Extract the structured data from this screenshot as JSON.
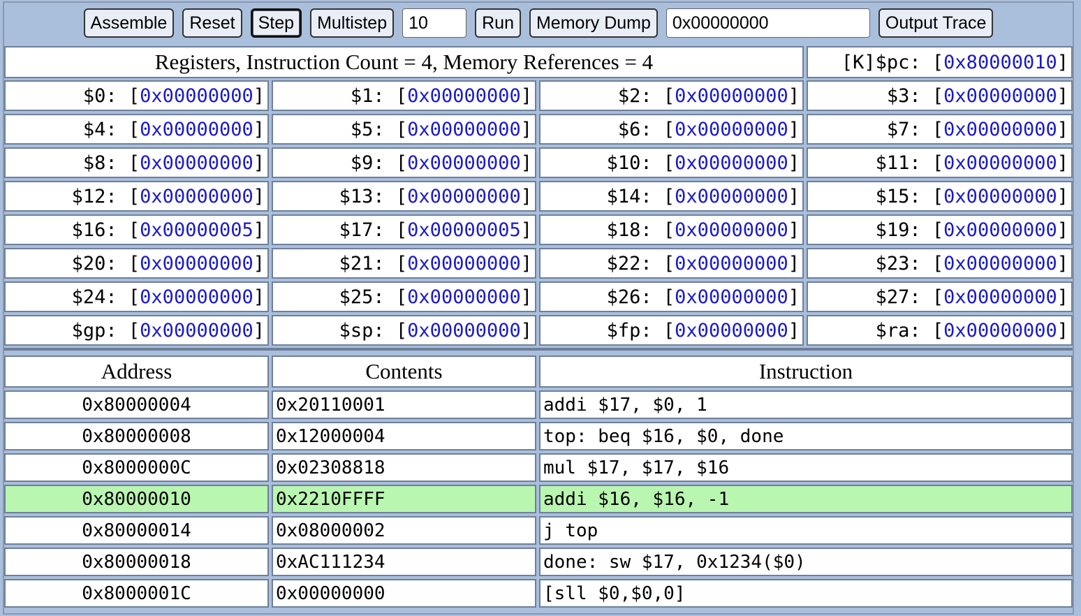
{
  "toolbar": {
    "assemble": "Assemble",
    "reset": "Reset",
    "step": "Step",
    "multistep": "Multistep",
    "multistep_count": "10",
    "run": "Run",
    "memory_dump": "Memory Dump",
    "memory_address": "0x00000000",
    "output_trace": "Output Trace"
  },
  "registers": {
    "header": "Registers, Instruction Count = 4, Memory References = 4",
    "pc": {
      "label": "[K]$pc: [",
      "value": "0x80000010",
      "close": "]"
    },
    "rows": [
      [
        {
          "label": "$0: [",
          "value": "0x00000000"
        },
        {
          "label": "$1: [",
          "value": "0x00000000"
        },
        {
          "label": "$2: [",
          "value": "0x00000000"
        },
        {
          "label": "$3: [",
          "value": "0x00000000"
        }
      ],
      [
        {
          "label": "$4: [",
          "value": "0x00000000"
        },
        {
          "label": "$5: [",
          "value": "0x00000000"
        },
        {
          "label": "$6: [",
          "value": "0x00000000"
        },
        {
          "label": "$7: [",
          "value": "0x00000000"
        }
      ],
      [
        {
          "label": "$8: [",
          "value": "0x00000000"
        },
        {
          "label": "$9: [",
          "value": "0x00000000"
        },
        {
          "label": "$10: [",
          "value": "0x00000000"
        },
        {
          "label": "$11: [",
          "value": "0x00000000"
        }
      ],
      [
        {
          "label": "$12: [",
          "value": "0x00000000"
        },
        {
          "label": "$13: [",
          "value": "0x00000000"
        },
        {
          "label": "$14: [",
          "value": "0x00000000"
        },
        {
          "label": "$15: [",
          "value": "0x00000000"
        }
      ],
      [
        {
          "label": "$16: [",
          "value": "0x00000005"
        },
        {
          "label": "$17: [",
          "value": "0x00000005"
        },
        {
          "label": "$18: [",
          "value": "0x00000000"
        },
        {
          "label": "$19: [",
          "value": "0x00000000"
        }
      ],
      [
        {
          "label": "$20: [",
          "value": "0x00000000"
        },
        {
          "label": "$21: [",
          "value": "0x00000000"
        },
        {
          "label": "$22: [",
          "value": "0x00000000"
        },
        {
          "label": "$23: [",
          "value": "0x00000000"
        }
      ],
      [
        {
          "label": "$24: [",
          "value": "0x00000000"
        },
        {
          "label": "$25: [",
          "value": "0x00000000"
        },
        {
          "label": "$26: [",
          "value": "0x00000000"
        },
        {
          "label": "$27: [",
          "value": "0x00000000"
        }
      ],
      [
        {
          "label": "$gp: [",
          "value": "0x00000000"
        },
        {
          "label": "$sp: [",
          "value": "0x00000000"
        },
        {
          "label": "$fp: [",
          "value": "0x00000000"
        },
        {
          "label": "$ra: [",
          "value": "0x00000000"
        }
      ]
    ]
  },
  "memory": {
    "headers": {
      "address": "Address",
      "contents": "Contents",
      "instruction": "Instruction"
    },
    "rows": [
      {
        "address": "0x80000004",
        "contents": "0x20110001",
        "instruction": "addi $17, $0, 1",
        "current": false
      },
      {
        "address": "0x80000008",
        "contents": "0x12000004",
        "instruction": "top: beq $16, $0, done",
        "current": false
      },
      {
        "address": "0x8000000C",
        "contents": "0x02308818",
        "instruction": "mul $17, $17, $16",
        "current": false
      },
      {
        "address": "0x80000010",
        "contents": "0x2210FFFF",
        "instruction": "addi $16, $16, -1",
        "current": true
      },
      {
        "address": "0x80000014",
        "contents": "0x08000002",
        "instruction": "j top",
        "current": false
      },
      {
        "address": "0x80000018",
        "contents": "0xAC111234",
        "instruction": "done: sw $17, 0x1234($0)",
        "current": false
      },
      {
        "address": "0x8000001C",
        "contents": "0x00000000",
        "instruction": "[sll $0,$0,0]",
        "current": false
      }
    ]
  },
  "colors": {
    "background": "#a9bfdc",
    "register_value": "#1a1acc",
    "current_row": "#b9f6b0"
  }
}
